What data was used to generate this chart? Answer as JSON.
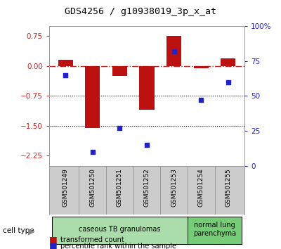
{
  "title": "GDS4256 / g10938019_3p_x_at",
  "samples": [
    "GSM501249",
    "GSM501250",
    "GSM501251",
    "GSM501252",
    "GSM501253",
    "GSM501254",
    "GSM501255"
  ],
  "transformed_count": [
    0.15,
    -1.55,
    -0.25,
    -1.1,
    0.75,
    -0.05,
    0.2
  ],
  "percentile_rank": [
    65,
    10,
    27,
    15,
    82,
    47,
    60
  ],
  "bar_color": "#bb1111",
  "dot_color": "#2222cc",
  "ylim_left": [
    -2.5,
    1.0
  ],
  "ylim_right": [
    0,
    100
  ],
  "yticks_left": [
    0.75,
    0,
    -0.75,
    -1.5,
    -2.25
  ],
  "yticks_right": [
    100,
    75,
    50,
    25,
    0
  ],
  "ytick_labels_right": [
    "100%",
    "75",
    "50",
    "25",
    "0"
  ],
  "hline_zero_color": "#cc2222",
  "hline1_val": -0.75,
  "hline2_val": -1.5,
  "cell_type_groups": [
    {
      "label": "caseous TB granulomas",
      "start": 0,
      "end": 5,
      "color": "#aaddaa"
    },
    {
      "label": "normal lung\nparenchyma",
      "start": 5,
      "end": 7,
      "color": "#77cc77"
    }
  ],
  "cell_type_label": "cell type",
  "legend_red": "transformed count",
  "legend_blue": "percentile rank within the sample"
}
